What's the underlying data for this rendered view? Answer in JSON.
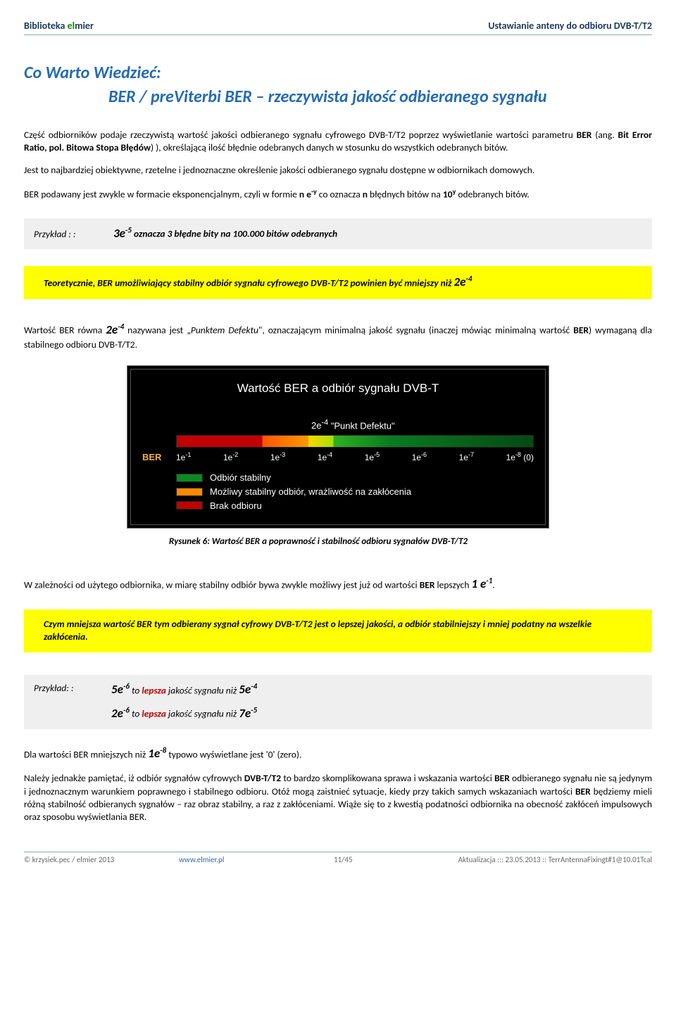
{
  "header": {
    "left_prefix": "Biblioteka ",
    "brand_el": "el",
    "brand_mier": "mier",
    "right": "Ustawianie anteny do odbioru DVB-T/T2"
  },
  "title": {
    "line1": "Co Warto Wiedzieć:",
    "line2": "BER / preViterbi BER – rzeczywista jakość odbieranego sygnału"
  },
  "para1_a": "Część odbiorników podaje rzeczywistą wartość jakości odbieranego sygnału cyfrowego DVB-T/T2 poprzez wyświetlanie wartości parametru ",
  "para1_b": "BER",
  "para1_c": " (ang. ",
  "para1_d": "Bit Error Ratio, pol. Bitowa Stopa Błędów",
  "para1_e": ") ), określającą ilość błędnie odebranych danych w stosunku do wszystkich odebranych bitów.",
  "para2": "Jest to najbardziej obiektywne, rzetelne i jednoznaczne określenie jakości odbieranego sygnału dostępne w odbiornikach domowych.",
  "para3_a": "BER podawany jest zwykle w formacie eksponencjalnym, czyli w formie ",
  "para3_b": "n e",
  "para3_c": " co oznacza ",
  "para3_d": "n",
  "para3_e": " błędnych bitów na ",
  "para3_f": "10",
  "para3_g": " odebranych bitów.",
  "example1": {
    "label": "Przykład : :",
    "expr": "3e",
    "sup": "-5",
    "tail": " oznacza 3 błędne bity na 100.000 bitów odebranych"
  },
  "yellow1_a": "Teoretycznie, BER umożliwiający stabilny odbiór sygnału cyfrowego DVB-T/T2 powinien być mniejszy niż ",
  "yellow1_b": "2e",
  "yellow1_sup": "-4",
  "para4_a": "Wartość BER równa ",
  "para4_b": "2e",
  "para4_sup": "-4",
  "para4_c": " nazywana jest „",
  "para4_d": "Punktem Defektu",
  "para4_e": "\", oznaczającym minimalną jakość sygnału (inaczej mówiąc minimalną wartość ",
  "para4_f": "BER",
  "para4_g": ") wymaganą dla stabilnego odbioru DVB-T/T2.",
  "figure": {
    "title": "Wartość BER a odbiór sygnału DVB-T",
    "punkt_expr": "2e",
    "punkt_sup": "-4",
    "punkt_label": " \"Punkt Defektu\"",
    "axis_label": "BER",
    "ticks": [
      {
        "base": "1e",
        "sup": "-1",
        "suffix": ""
      },
      {
        "base": "1e",
        "sup": "-2",
        "suffix": ""
      },
      {
        "base": "1e",
        "sup": "-3",
        "suffix": ""
      },
      {
        "base": "1e",
        "sup": "-4",
        "suffix": ""
      },
      {
        "base": "1e",
        "sup": "-5",
        "suffix": ""
      },
      {
        "base": "1e",
        "sup": "-6",
        "suffix": ""
      },
      {
        "base": "1e",
        "sup": "-7",
        "suffix": ""
      },
      {
        "base": "1e",
        "sup": "-8",
        "suffix": " (0)"
      }
    ],
    "legend": {
      "green": "Odbiór stabilny",
      "orange": "Możliwy stabilny odbiór, wrażliwość na zakłócenia",
      "red": "Brak odbioru"
    },
    "gradient_stops": [
      {
        "color": "#c00000",
        "pct": 0
      },
      {
        "color": "#c00000",
        "pct": 24
      },
      {
        "color": "#ff5500",
        "pct": 24
      },
      {
        "color": "#ff9900",
        "pct": 37
      },
      {
        "color": "#f7d800",
        "pct": 37
      },
      {
        "color": "#a7e000",
        "pct": 44
      },
      {
        "color": "#2fb020",
        "pct": 44
      },
      {
        "color": "#0a7a20",
        "pct": 60
      },
      {
        "color": "#054a14",
        "pct": 100
      }
    ],
    "caption": "Rysunek 6: Wartość BER a poprawność i stabilność odbioru sygnałów DVB-T/T2"
  },
  "para5_a": "W zależności od użytego odbiornika, w miarę stabilny odbiór bywa zwykle możliwy jest już od wartości ",
  "para5_b": "BER",
  "para5_c": " lepszych ",
  "para5_d": "1 e",
  "para5_sup": "-1",
  "para5_e": ".",
  "yellow2": "Czym mniejsza wartość BER tym odbierany sygnał cyfrowy DVB-T/T2 jest o lepszej jakości, a odbiór stabilniejszy i mniej podatny na wszelkie zakłócenia.",
  "example2": {
    "label": "Przykład: :",
    "line1_a": "5e",
    "line1_a_sup": "-6",
    "line1_b": " to ",
    "line1_c": "lepsza",
    "line1_d": " jakość sygnału niż ",
    "line1_e": "5e",
    "line1_e_sup": "-4",
    "line2_a": "2e",
    "line2_a_sup": "-6",
    "line2_b": " to ",
    "line2_c": "lepsza",
    "line2_d": " jakość sygnału niż ",
    "line2_e": "7e",
    "line2_e_sup": "-5"
  },
  "para6_a": "Dla wartości BER mniejszych niż ",
  "para6_b": "1e",
  "para6_sup": "-8",
  "para6_c": " typowo wyświetlane jest '0' (zero).",
  "para7_a": "Należy jednakże pamiętać, iż odbiór sygnałów cyfrowych ",
  "para7_b": "DVB-T/T2",
  "para7_c": " to bardzo skomplikowana sprawa i wskazania wartości ",
  "para7_d": "BER",
  "para7_e": " odbieranego sygnału nie są jedynym i jednoznacznym warunkiem poprawnego i stabilnego odbioru. Otóż mogą zaistnieć sytuacje, kiedy przy takich samych wskazaniach wartości ",
  "para7_f": "BER",
  "para7_g": " będziemy mieli różną stabilność odbieranych sygnałów – raz obraz stabilny, a raz z zakłóceniami.  Wiąże się to z kwestią podatności odbiornika na obecność zakłóceń impulsowych oraz sposobu wyświetlania BER.",
  "footer": {
    "copyright": "© krzysiek.pec / elmier 2013",
    "url": "www.elmier.pl",
    "page": "11/45",
    "update": "Aktualizacja ::: 23.05.2013 :: TerrAntennaFixingt#1@10.01Tcal"
  }
}
